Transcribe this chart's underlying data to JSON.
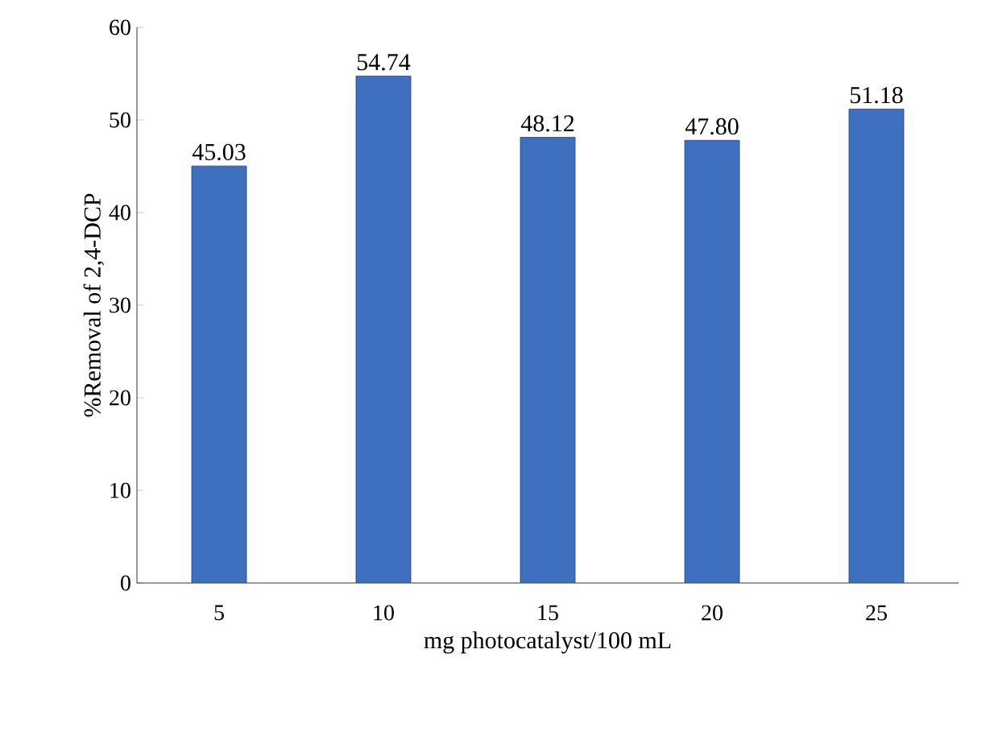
{
  "chart_data": {
    "type": "bar",
    "xlabel": "mg photocatalyst/100 mL",
    "ylabel": "%Removal of 2,4-DCP",
    "categories": [
      "5",
      "10",
      "15",
      "20",
      "25"
    ],
    "values": [
      45.03,
      54.74,
      48.12,
      47.8,
      51.18
    ],
    "value_labels": [
      "45.03",
      "54.74",
      "48.12",
      "47.80",
      "51.18"
    ],
    "color": "#3f6fbf",
    "ylim": [
      0,
      60
    ],
    "yticks": [
      0,
      10,
      20,
      30,
      40,
      50,
      60
    ]
  }
}
